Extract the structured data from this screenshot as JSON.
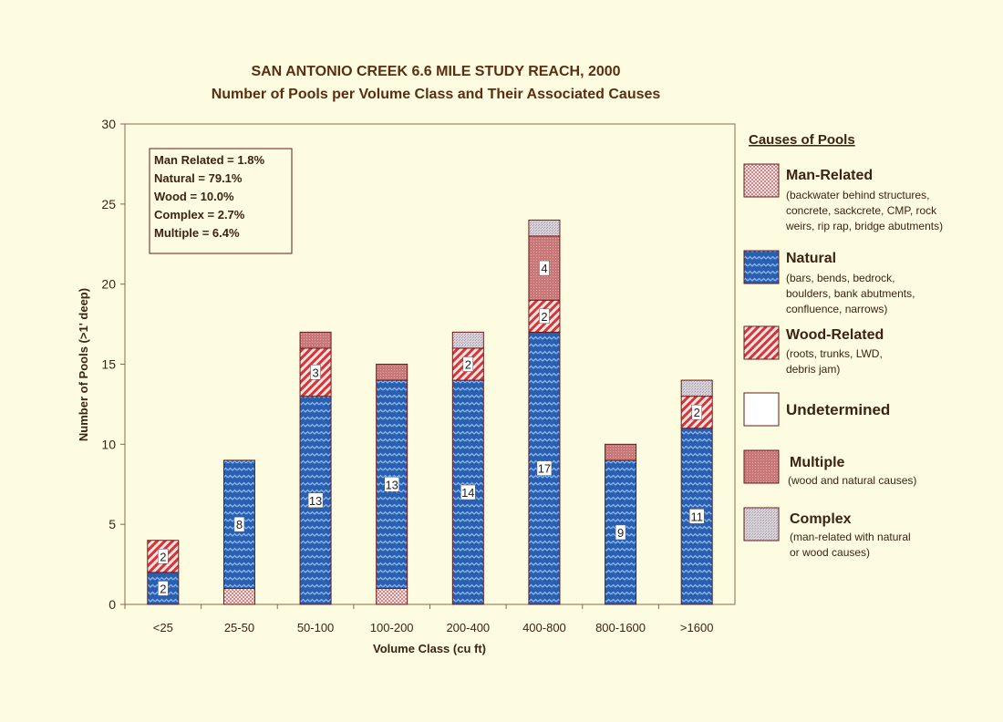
{
  "chart_data": {
    "type": "bar",
    "stacked": true,
    "title": "SAN ANTONIO CREEK 6.6 MILE STUDY REACH, 2000",
    "subtitle": "Number of Pools per Volume Class and Their Associated Causes",
    "xlabel": "Volume Class (cu ft)",
    "ylabel": "Number of Pools (>1' deep)",
    "ylim": [
      0,
      30
    ],
    "yticks": [
      0,
      5,
      10,
      15,
      20,
      25,
      30
    ],
    "grid": false,
    "categories": [
      "<25",
      "25-50",
      "50-100",
      "100-200",
      "200-400",
      "400-800",
      "800-1600",
      ">1600"
    ],
    "series": [
      {
        "key": "man",
        "name": "Man-Related",
        "values": [
          0,
          1,
          0,
          1,
          0,
          0,
          0,
          0
        ]
      },
      {
        "key": "natural",
        "name": "Natural",
        "values": [
          2,
          8,
          13,
          13,
          14,
          17,
          9,
          11
        ]
      },
      {
        "key": "wood",
        "name": "Wood-Related",
        "values": [
          2,
          0,
          3,
          0,
          2,
          2,
          0,
          2
        ]
      },
      {
        "key": "undetermined",
        "name": "Undetermined",
        "values": [
          0,
          0,
          0,
          0,
          0,
          0,
          0,
          0
        ]
      },
      {
        "key": "multiple",
        "name": "Multiple",
        "values": [
          0,
          0,
          1,
          1,
          0,
          4,
          1,
          0
        ]
      },
      {
        "key": "complex",
        "name": "Complex",
        "values": [
          0,
          0,
          0,
          0,
          1,
          1,
          0,
          1
        ]
      }
    ],
    "data_labels": [
      {
        "category": 0,
        "series": "natural",
        "text": "2"
      },
      {
        "category": 0,
        "series": "wood",
        "text": "2"
      },
      {
        "category": 1,
        "series": "natural",
        "text": "8"
      },
      {
        "category": 2,
        "series": "natural",
        "text": "13"
      },
      {
        "category": 2,
        "series": "wood",
        "text": "3"
      },
      {
        "category": 3,
        "series": "natural",
        "text": "13"
      },
      {
        "category": 4,
        "series": "natural",
        "text": "14"
      },
      {
        "category": 4,
        "series": "wood",
        "text": "2"
      },
      {
        "category": 5,
        "series": "natural",
        "text": "17"
      },
      {
        "category": 5,
        "series": "wood",
        "text": "2"
      },
      {
        "category": 5,
        "series": "multiple",
        "text": "4"
      },
      {
        "category": 6,
        "series": "natural",
        "text": "9"
      },
      {
        "category": 7,
        "series": "natural",
        "text": "11"
      },
      {
        "category": 7,
        "series": "wood",
        "text": "2"
      }
    ],
    "stats_box": [
      "Man Related = 1.8%",
      "Natural = 79.1%",
      "Wood = 10.0%",
      "Complex = 2.7%",
      "Multiple = 6.4%"
    ],
    "legend": {
      "placement": "right",
      "title": "Causes of Pools",
      "items": [
        {
          "key": "man",
          "name": "Man-Related",
          "desc": [
            "(backwater behind structures,",
            "concrete, sackcrete, CMP, rock",
            "weirs, rip rap, bridge abutments)"
          ]
        },
        {
          "key": "natural",
          "name": "Natural",
          "desc": [
            "(bars, bends, bedrock,",
            "boulders, bank abutments,",
            "confluence, narrows)"
          ]
        },
        {
          "key": "wood",
          "name": "Wood-Related",
          "desc": [
            "(roots, trunks, LWD,",
            "debris jam)"
          ]
        },
        {
          "key": "undetermined",
          "name": "Undetermined",
          "desc": []
        },
        {
          "key": "multiple",
          "name": "Multiple",
          "desc": [
            "(wood and natural causes)"
          ]
        },
        {
          "key": "complex",
          "name": "Complex",
          "desc": [
            "(man-related with natural",
            "or wood causes)"
          ]
        }
      ]
    },
    "colors": {
      "man": "#c98a8a",
      "natural": "#2a5fb0",
      "natural_line": "#7eb0e8",
      "wood": "#d8323a",
      "undetermined": "#ffffff",
      "multiple": "#c97878",
      "complex": "#c9c2c8",
      "outline": "#6b1a1a"
    }
  }
}
